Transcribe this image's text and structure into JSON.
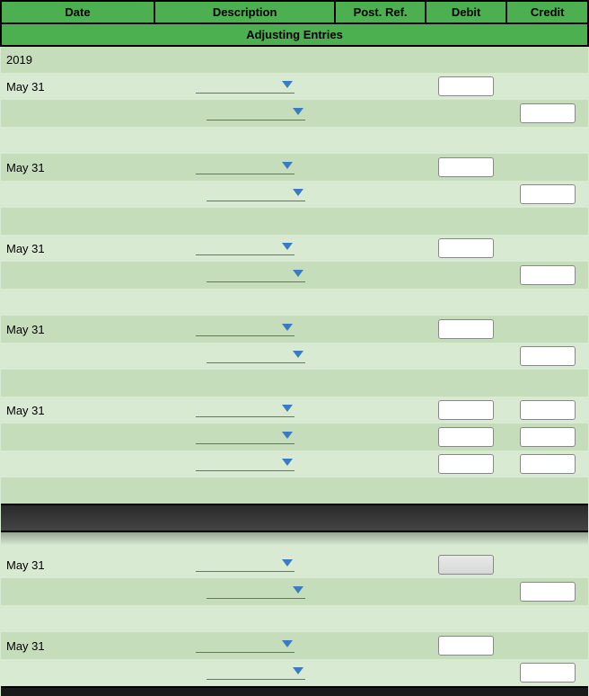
{
  "headers": {
    "date": "Date",
    "description": "Description",
    "post_ref": "Post. Ref.",
    "debit": "Debit",
    "credit": "Credit"
  },
  "subtitle": "Adjusting Entries",
  "year": "2019",
  "colors": {
    "header_bg": "#4caf50",
    "stripe_light": "#d9ead3",
    "stripe_dark": "#c5ddbb",
    "dropdown_line": "#3b7bbf",
    "border": "#000000"
  },
  "entries": [
    {
      "date": "May 31",
      "lines": [
        {
          "indent": false,
          "debit": true,
          "credit": false
        },
        {
          "indent": true,
          "debit": false,
          "credit": true
        }
      ]
    },
    {
      "date": "May 31",
      "lines": [
        {
          "indent": false,
          "debit": true,
          "credit": false
        },
        {
          "indent": true,
          "debit": false,
          "credit": true
        }
      ]
    },
    {
      "date": "May 31",
      "lines": [
        {
          "indent": false,
          "debit": true,
          "credit": false
        },
        {
          "indent": true,
          "debit": false,
          "credit": true
        }
      ]
    },
    {
      "date": "May 31",
      "lines": [
        {
          "indent": false,
          "debit": true,
          "credit": false
        },
        {
          "indent": true,
          "debit": false,
          "credit": true
        }
      ]
    },
    {
      "date": "May 31",
      "lines": [
        {
          "indent": false,
          "debit": true,
          "credit": true
        },
        {
          "indent": false,
          "debit": true,
          "credit": true
        },
        {
          "indent": false,
          "debit": true,
          "credit": true
        }
      ]
    }
  ],
  "section2_entries": [
    {
      "date": "May 31",
      "lines": [
        {
          "indent": false,
          "debit": true,
          "debit_shaded": true,
          "credit": false
        },
        {
          "indent": true,
          "debit": false,
          "credit": true
        }
      ]
    },
    {
      "date": "May 31",
      "lines": [
        {
          "indent": false,
          "debit": true,
          "credit": false
        },
        {
          "indent": true,
          "debit": false,
          "credit": true
        }
      ]
    }
  ]
}
